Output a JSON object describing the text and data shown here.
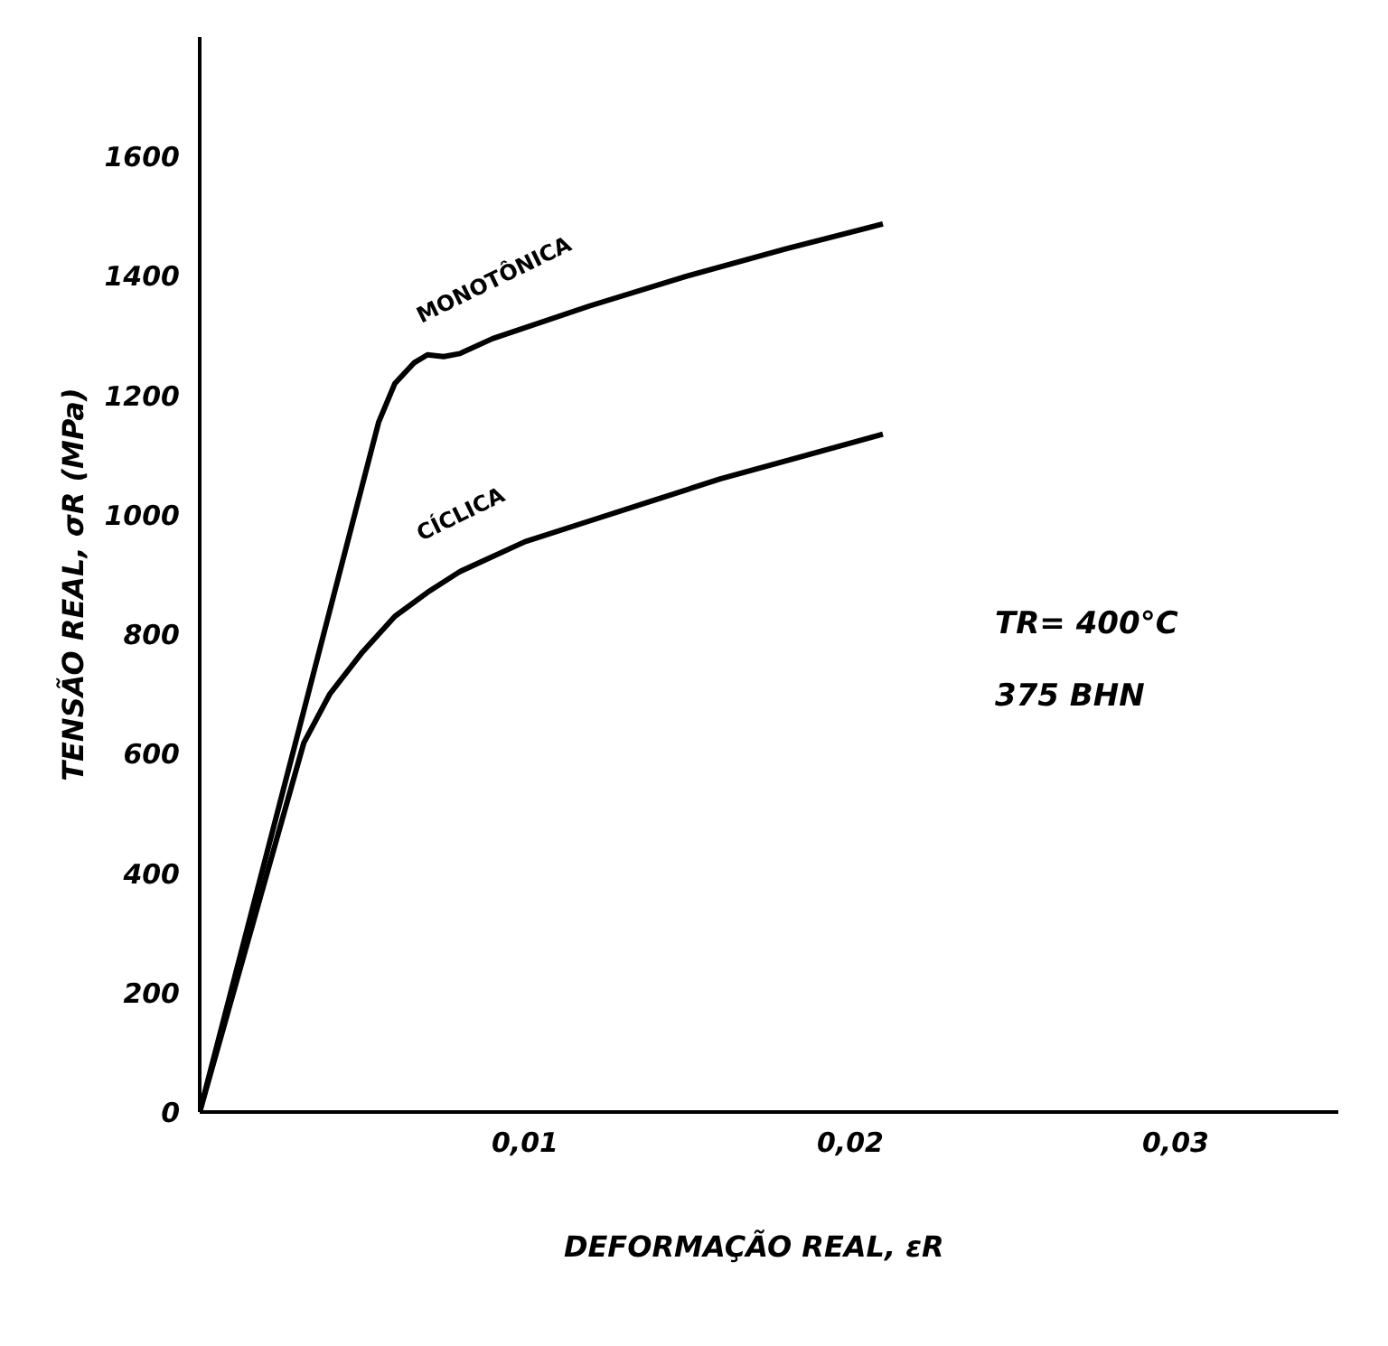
{
  "chart_data": {
    "type": "line",
    "xlabel": "DEFORMAÇÃO   REAL,  εR",
    "ylabel": "TENSÃO   REAL, σR (MPa)",
    "xlim": [
      0,
      0.035
    ],
    "ylim": [
      0,
      1800
    ],
    "xticks": [
      {
        "value": 0.01,
        "label": "0,01"
      },
      {
        "value": 0.02,
        "label": "0,02"
      },
      {
        "value": 0.03,
        "label": "0,03"
      }
    ],
    "yticks": [
      0,
      200,
      400,
      600,
      800,
      1000,
      1200,
      1400,
      1600
    ],
    "grid": false,
    "marker": "none",
    "line_style": "solid",
    "series": [
      {
        "name": "MONOTÔNICA",
        "color": "#000000",
        "x": [
          0,
          0.0055,
          0.006,
          0.0066,
          0.007,
          0.0075,
          0.008,
          0.009,
          0.012,
          0.015,
          0.018,
          0.021
        ],
        "values": [
          0,
          1155,
          1220,
          1255,
          1268,
          1265,
          1270,
          1295,
          1350,
          1400,
          1445,
          1487
        ]
      },
      {
        "name": "CÍCLICA",
        "color": "#000000",
        "x": [
          0,
          0.0032,
          0.004,
          0.005,
          0.006,
          0.007,
          0.008,
          0.01,
          0.012,
          0.014,
          0.016,
          0.018,
          0.021
        ],
        "values": [
          0,
          618,
          700,
          770,
          830,
          870,
          905,
          955,
          990,
          1025,
          1060,
          1090,
          1135
        ]
      }
    ],
    "annotations": [
      "TR= 400°C",
      "375 BHN"
    ]
  }
}
